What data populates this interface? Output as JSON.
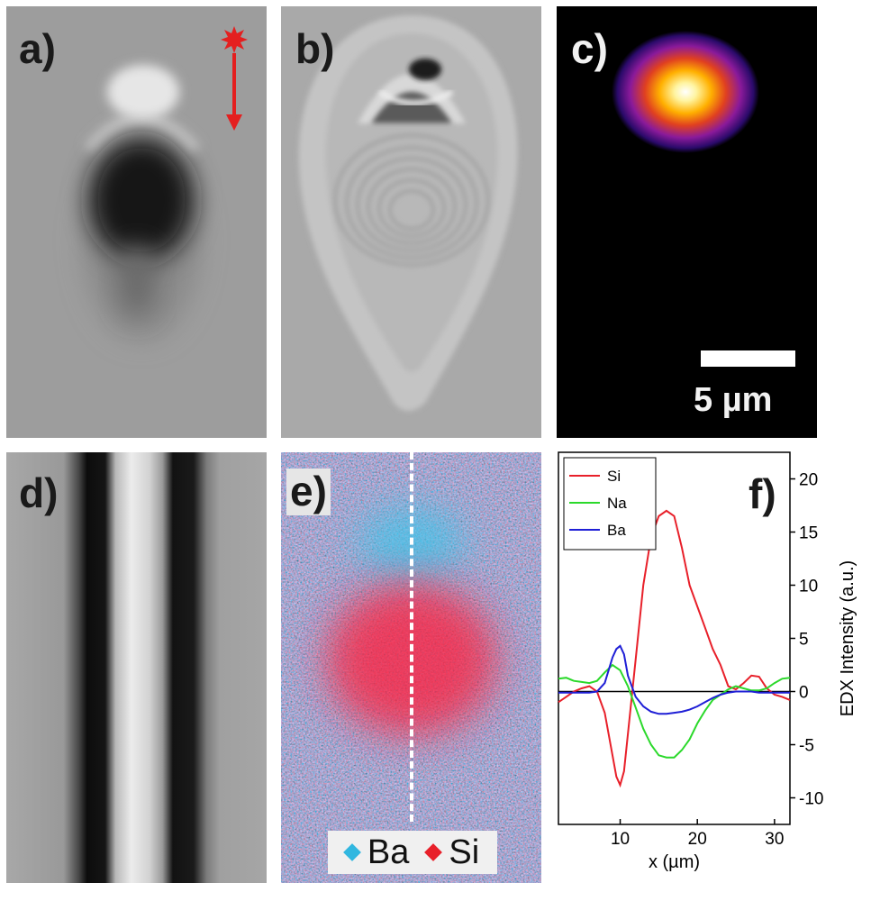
{
  "panels": {
    "a": {
      "label": "a)"
    },
    "b": {
      "label": "b)"
    },
    "c": {
      "label": "c)",
      "scalebar": "5 µm"
    },
    "d": {
      "label": "d)"
    },
    "e": {
      "label": "e)",
      "legend": [
        {
          "name": "Ba",
          "color": "#31b7e0"
        },
        {
          "name": "Si",
          "color": "#e8202a"
        }
      ]
    },
    "f": {
      "label": "f)"
    }
  },
  "chart_data": {
    "type": "line",
    "xlabel": "x (µm)",
    "ylabel": "EDX Intensity (a.u.)",
    "xlim": [
      2,
      32
    ],
    "ylim": [
      -12.5,
      22.5
    ],
    "xticks": [
      10,
      20,
      30
    ],
    "yticks": [
      -10,
      -5,
      0,
      5,
      10,
      15,
      20
    ],
    "legend_position": "top-left",
    "series": [
      {
        "name": "Si",
        "color": "#e8202a",
        "x": [
          2,
          3,
          4,
          5,
          6,
          7,
          8,
          9,
          9.5,
          10,
          10.5,
          11,
          12,
          13,
          14,
          15,
          16,
          17,
          18,
          19,
          20,
          21,
          22,
          23,
          24,
          25,
          26,
          27,
          28,
          29,
          30,
          31,
          32
        ],
        "y": [
          -1,
          -0.5,
          0,
          0.3,
          0.5,
          0,
          -2,
          -6,
          -8,
          -8.8,
          -7.5,
          -4,
          3,
          10,
          14.5,
          16.5,
          17,
          16.5,
          13.5,
          10,
          8,
          6,
          4,
          2.5,
          0.5,
          0.2,
          0.8,
          1.5,
          1.4,
          0.3,
          -0.3,
          -0.5,
          -0.8
        ]
      },
      {
        "name": "Na",
        "color": "#2bd92b",
        "x": [
          2,
          3,
          4,
          5,
          6,
          7,
          8,
          9,
          10,
          11,
          12,
          13,
          14,
          15,
          16,
          17,
          18,
          19,
          20,
          21,
          22,
          23,
          24,
          25,
          26,
          27,
          28,
          29,
          30,
          31,
          32
        ],
        "y": [
          1.2,
          1.3,
          1,
          0.9,
          0.8,
          1,
          1.8,
          2.5,
          2,
          0.5,
          -1.5,
          -3.5,
          -5,
          -6,
          -6.2,
          -6.2,
          -5.5,
          -4.5,
          -3,
          -1.8,
          -0.8,
          -0.3,
          0.2,
          0.5,
          0.3,
          0.1,
          0.1,
          0.3,
          0.8,
          1.2,
          1.3
        ]
      },
      {
        "name": "Ba",
        "color": "#1f1fd6",
        "x": [
          2,
          3,
          4,
          5,
          6,
          7,
          8,
          9,
          9.5,
          10,
          10.5,
          11,
          12,
          13,
          14,
          15,
          16,
          17,
          18,
          19,
          20,
          21,
          22,
          23,
          24,
          25,
          26,
          27,
          28,
          29,
          30,
          31,
          32
        ],
        "y": [
          -0.1,
          -0.1,
          -0.1,
          -0.1,
          -0.1,
          0,
          0.8,
          3.2,
          4,
          4.3,
          3.5,
          1.5,
          -0.5,
          -1.4,
          -1.9,
          -2.1,
          -2.1,
          -2,
          -1.9,
          -1.7,
          -1.4,
          -1,
          -0.6,
          -0.3,
          -0.1,
          0,
          0,
          0,
          -0.1,
          -0.1,
          -0.1,
          -0.1,
          -0.1
        ]
      }
    ]
  }
}
